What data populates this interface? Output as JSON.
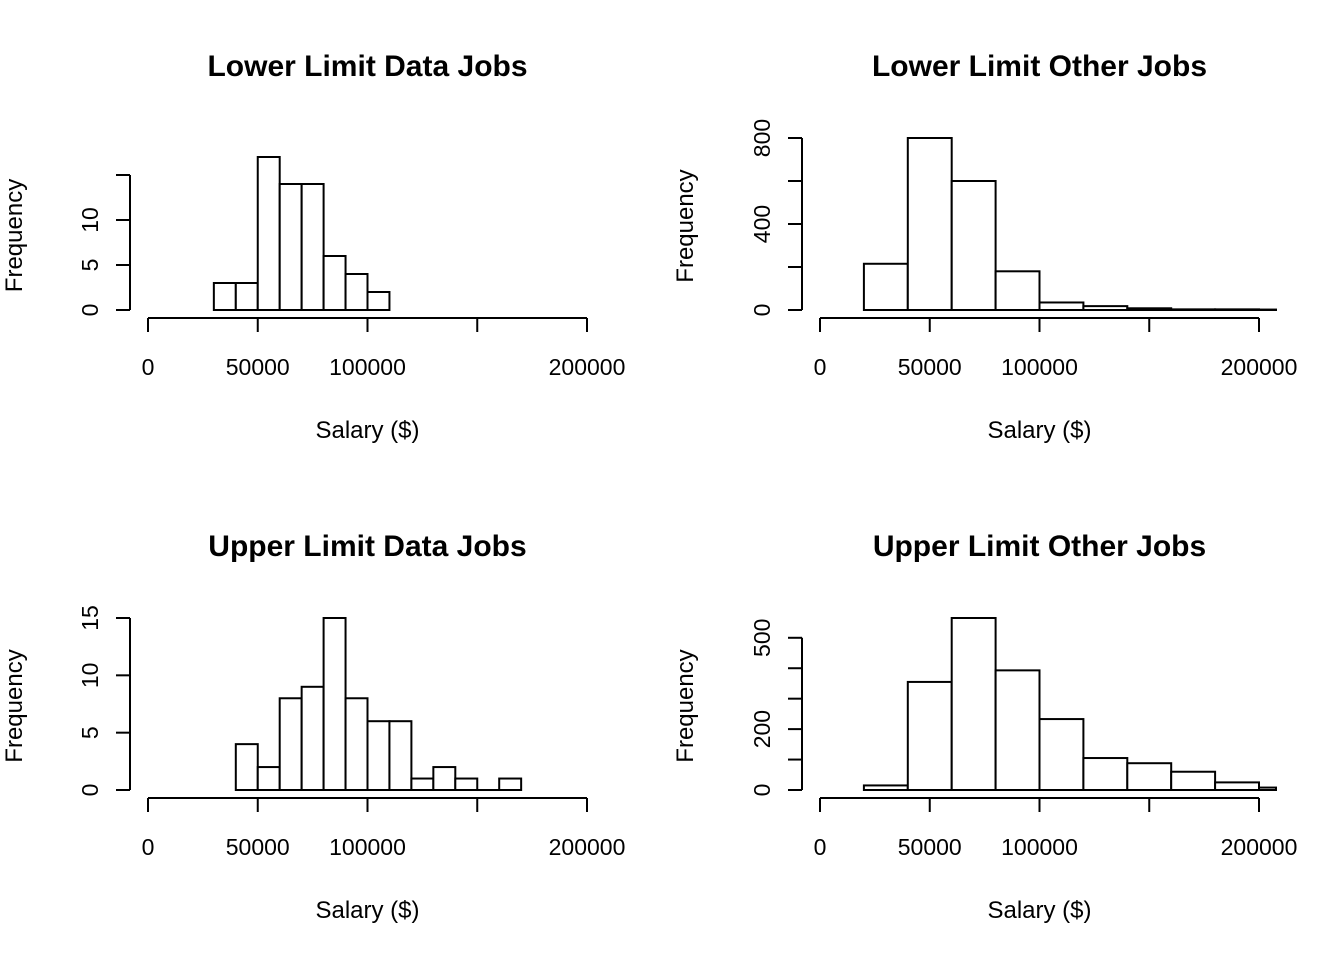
{
  "chart_data": [
    {
      "type": "histogram",
      "title": "Lower Limit Data Jobs",
      "xlabel": "Salary ($)",
      "ylabel": "Frequency",
      "xlim": [
        0,
        200000
      ],
      "x_ticks": [
        0,
        50000,
        100000,
        150000,
        200000
      ],
      "x_tick_labels": [
        "0",
        "50000",
        "100000",
        "",
        "200000"
      ],
      "y_ticks": [
        0,
        5,
        10,
        15
      ],
      "y_tick_labels": [
        "0",
        "5",
        "10",
        ""
      ],
      "ylim": [
        0,
        17
      ],
      "bins": [
        {
          "x0": 30000,
          "x1": 40000,
          "count": 3
        },
        {
          "x0": 40000,
          "x1": 50000,
          "count": 3
        },
        {
          "x0": 50000,
          "x1": 60000,
          "count": 17
        },
        {
          "x0": 60000,
          "x1": 70000,
          "count": 14
        },
        {
          "x0": 70000,
          "x1": 80000,
          "count": 14
        },
        {
          "x0": 80000,
          "x1": 90000,
          "count": 6
        },
        {
          "x0": 90000,
          "x1": 100000,
          "count": 4
        },
        {
          "x0": 100000,
          "x1": 110000,
          "count": 2
        }
      ]
    },
    {
      "type": "histogram",
      "title": "Lower Limit Other Jobs",
      "xlabel": "Salary ($)",
      "ylabel": "Frequency",
      "xlim": [
        0,
        200000
      ],
      "x_ticks": [
        0,
        50000,
        100000,
        150000,
        200000
      ],
      "x_tick_labels": [
        "0",
        "50000",
        "100000",
        "",
        "200000"
      ],
      "y_ticks": [
        0,
        200,
        400,
        600,
        800
      ],
      "y_tick_labels": [
        "0",
        "",
        "400",
        "",
        "800"
      ],
      "ylim": [
        0,
        800
      ],
      "bins": [
        {
          "x0": 20000,
          "x1": 40000,
          "count": 215
        },
        {
          "x0": 40000,
          "x1": 60000,
          "count": 800
        },
        {
          "x0": 60000,
          "x1": 80000,
          "count": 600
        },
        {
          "x0": 80000,
          "x1": 100000,
          "count": 180
        },
        {
          "x0": 100000,
          "x1": 120000,
          "count": 35
        },
        {
          "x0": 120000,
          "x1": 140000,
          "count": 18
        },
        {
          "x0": 140000,
          "x1": 160000,
          "count": 8
        },
        {
          "x0": 160000,
          "x1": 180000,
          "count": 3
        },
        {
          "x0": 180000,
          "x1": 200000,
          "count": 3
        },
        {
          "x0": 200000,
          "x1": 220000,
          "count": 2
        }
      ]
    },
    {
      "type": "histogram",
      "title": "Upper Limit Data Jobs",
      "xlabel": "Salary ($)",
      "ylabel": "Frequency",
      "xlim": [
        0,
        200000
      ],
      "x_ticks": [
        0,
        50000,
        100000,
        150000,
        200000
      ],
      "x_tick_labels": [
        "0",
        "50000",
        "100000",
        "",
        "200000"
      ],
      "y_ticks": [
        0,
        5,
        10,
        15
      ],
      "y_tick_labels": [
        "0",
        "5",
        "10",
        "15"
      ],
      "ylim": [
        0,
        15
      ],
      "bins": [
        {
          "x0": 40000,
          "x1": 50000,
          "count": 4
        },
        {
          "x0": 50000,
          "x1": 60000,
          "count": 2
        },
        {
          "x0": 60000,
          "x1": 70000,
          "count": 8
        },
        {
          "x0": 70000,
          "x1": 80000,
          "count": 9
        },
        {
          "x0": 80000,
          "x1": 90000,
          "count": 15
        },
        {
          "x0": 90000,
          "x1": 100000,
          "count": 8
        },
        {
          "x0": 100000,
          "x1": 110000,
          "count": 6
        },
        {
          "x0": 110000,
          "x1": 120000,
          "count": 6
        },
        {
          "x0": 120000,
          "x1": 130000,
          "count": 1
        },
        {
          "x0": 130000,
          "x1": 140000,
          "count": 2
        },
        {
          "x0": 140000,
          "x1": 150000,
          "count": 1
        },
        {
          "x0": 150000,
          "x1": 160000,
          "count": 0
        },
        {
          "x0": 160000,
          "x1": 170000,
          "count": 1
        }
      ]
    },
    {
      "type": "histogram",
      "title": "Upper Limit Other Jobs",
      "xlabel": "Salary ($)",
      "ylabel": "Frequency",
      "xlim": [
        0,
        200000
      ],
      "x_ticks": [
        0,
        50000,
        100000,
        150000,
        200000
      ],
      "x_tick_labels": [
        "0",
        "50000",
        "100000",
        "",
        "200000"
      ],
      "y_ticks": [
        0,
        100,
        200,
        300,
        400,
        500
      ],
      "y_tick_labels": [
        "0",
        "",
        "200",
        "",
        "",
        "500"
      ],
      "ylim": [
        0,
        565
      ],
      "bins": [
        {
          "x0": 20000,
          "x1": 40000,
          "count": 15
        },
        {
          "x0": 40000,
          "x1": 60000,
          "count": 355
        },
        {
          "x0": 60000,
          "x1": 80000,
          "count": 565
        },
        {
          "x0": 80000,
          "x1": 100000,
          "count": 393
        },
        {
          "x0": 100000,
          "x1": 120000,
          "count": 233
        },
        {
          "x0": 120000,
          "x1": 140000,
          "count": 105
        },
        {
          "x0": 140000,
          "x1": 160000,
          "count": 88
        },
        {
          "x0": 160000,
          "x1": 180000,
          "count": 60
        },
        {
          "x0": 180000,
          "x1": 200000,
          "count": 25
        },
        {
          "x0": 200000,
          "x1": 220000,
          "count": 8
        }
      ]
    }
  ]
}
